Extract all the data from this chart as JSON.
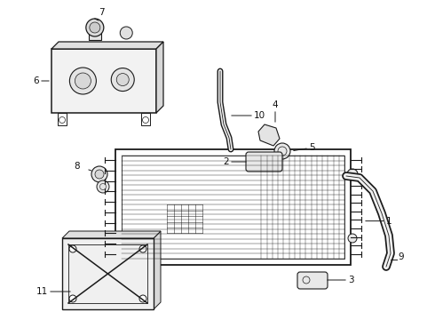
{
  "bg_color": "#ffffff",
  "line_color": "#1a1a1a",
  "label_color": "#111111",
  "figsize": [
    4.9,
    3.6
  ],
  "dpi": 100,
  "label_fontsize": 7.5
}
